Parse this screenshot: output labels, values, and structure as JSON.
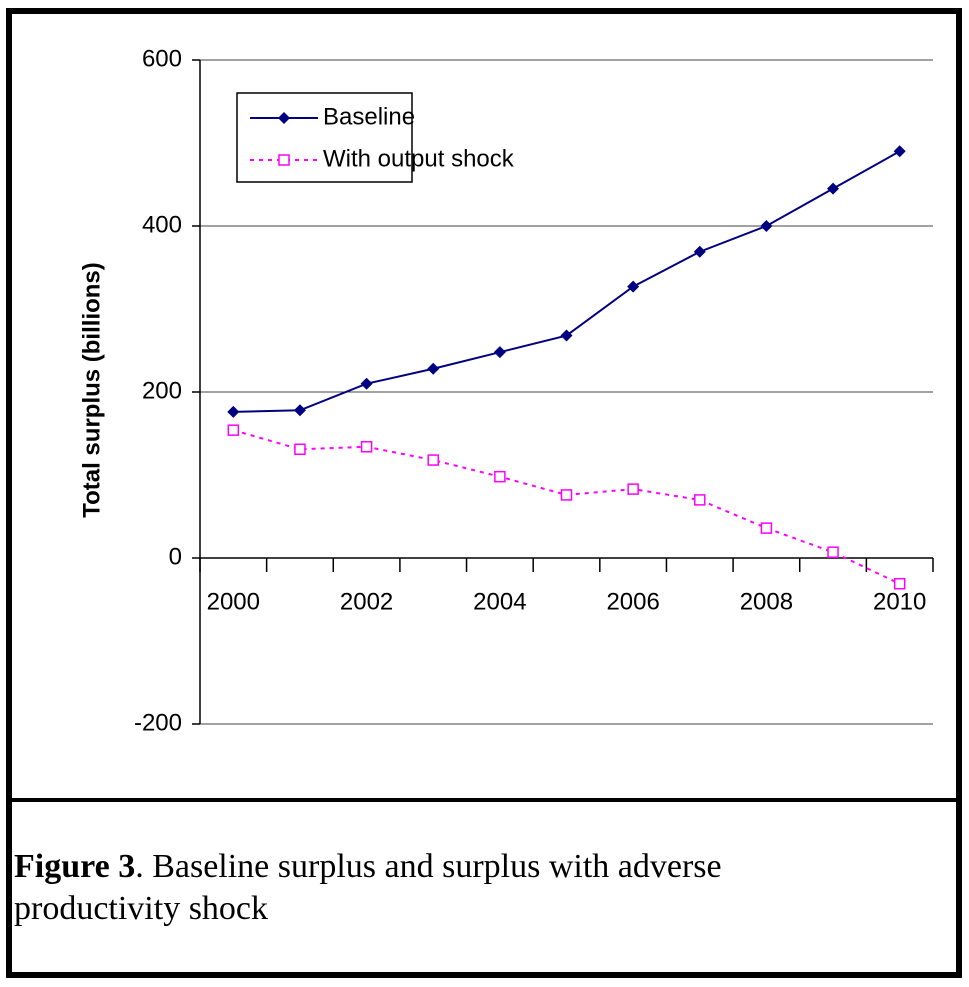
{
  "chart_data": {
    "type": "line",
    "categories": [
      "2000",
      null,
      "2002",
      null,
      "2004",
      null,
      "2006",
      null,
      "2008",
      null,
      "2010"
    ],
    "y_label": "Total surplus (billions)",
    "ylim": [
      -200,
      600
    ],
    "yticks": [
      -200,
      0,
      200,
      400,
      600
    ],
    "grid": true,
    "legend": "upper left",
    "series": [
      {
        "name": "Baseline",
        "color": "#000080",
        "marker": "diamond",
        "dash": false,
        "values": [
          176,
          178,
          210,
          228,
          248,
          268,
          327,
          369,
          400,
          445,
          490
        ]
      },
      {
        "name": "With output shock",
        "color": "#ff00ff",
        "marker": "open-square",
        "dash": true,
        "values": [
          154,
          131,
          134,
          118,
          98,
          76,
          83,
          70,
          36,
          7,
          -31
        ]
      }
    ],
    "caption_label": "Figure 3",
    "caption_text": ". Baseline surplus and surplus with adverse productivity shock"
  }
}
